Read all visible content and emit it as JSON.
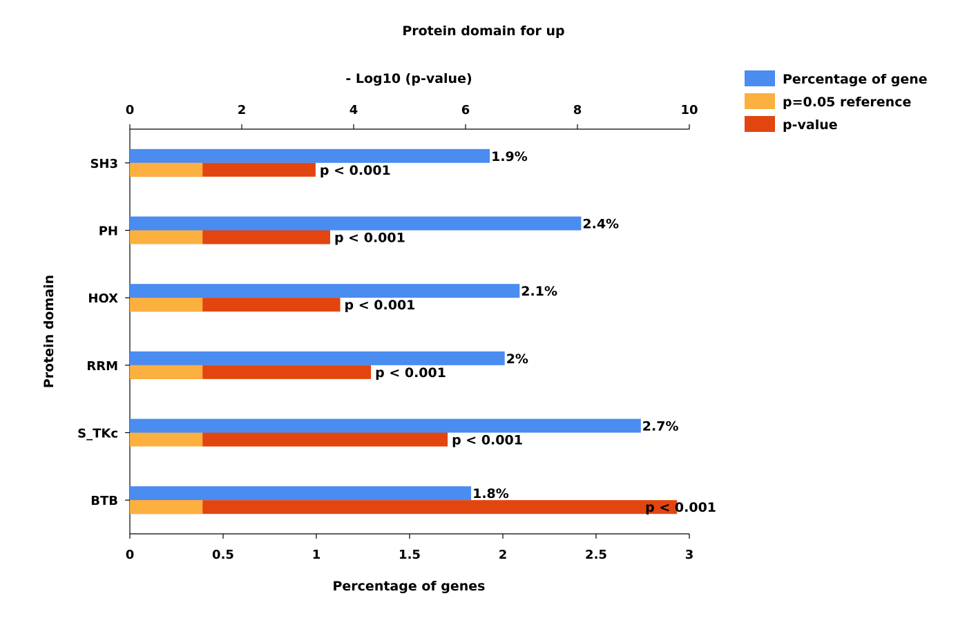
{
  "chart_data": {
    "type": "bar",
    "orientation": "horizontal",
    "title": "Protein domain for up",
    "ylabel": "Protein domain",
    "xlabel_bottom": "Percentage of genes",
    "xlabel_top": "- Log10 (p-value)",
    "categories": [
      "SH3",
      "PH",
      "HOX",
      "RRM",
      "S_TKc",
      "BTB"
    ],
    "bottom_axis": {
      "range": [
        0,
        3
      ],
      "ticks": [
        "0",
        "0.5",
        "1",
        "1.5",
        "2",
        "2.5",
        "3"
      ]
    },
    "top_axis": {
      "range": [
        0,
        10
      ],
      "ticks": [
        "0",
        "2",
        "4",
        "6",
        "8",
        "10"
      ]
    },
    "series": [
      {
        "name": "Percentage of gene",
        "axis": "bottom",
        "color": "#4a8cf0",
        "values": [
          1.93,
          2.42,
          2.09,
          2.01,
          2.74,
          1.83
        ],
        "labels": [
          "1.9%",
          "2.4%",
          "2.1%",
          "2%",
          "2.7%",
          "1.8%"
        ]
      },
      {
        "name": "p=0.05 reference",
        "axis": "top",
        "color": "#fbb040",
        "values": [
          1.3,
          1.3,
          1.3,
          1.3,
          1.3,
          1.3
        ]
      },
      {
        "name": "p-value",
        "axis": "top",
        "color": "#e2450f",
        "values": [
          3.32,
          3.58,
          3.76,
          4.31,
          5.68,
          9.78
        ],
        "labels": [
          "p < 0.001",
          "p < 0.001",
          "p < 0.001",
          "p < 0.001",
          "p < 0.001",
          "p < 0.001"
        ]
      }
    ],
    "legend_position": "top-right",
    "grid": false
  }
}
